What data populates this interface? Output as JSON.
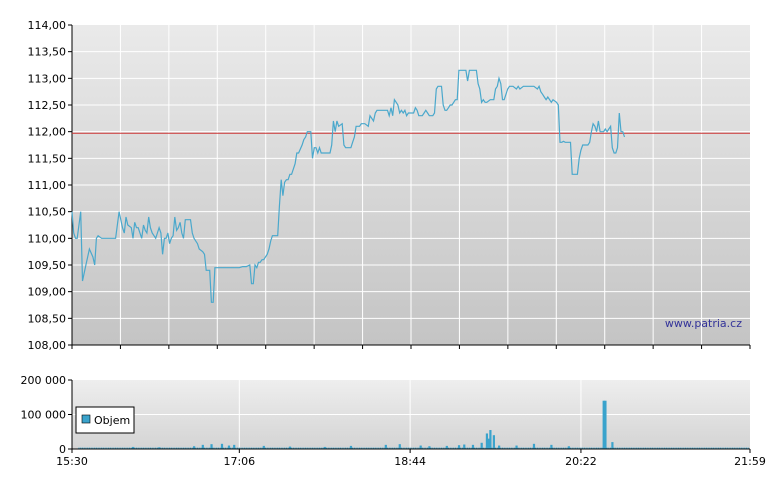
{
  "watermark": "www.patria.cz",
  "colors": {
    "price_line": "#4aa8cc",
    "reference_line": "#cc3333",
    "volume_bar": "#3aa3cc",
    "grid": "#ffffff",
    "axis": "#000000"
  },
  "chart_data": [
    {
      "type": "line",
      "name": "price",
      "ylim": [
        108.0,
        114.0
      ],
      "ytick_labels": [
        "108,00",
        "108,50",
        "109,00",
        "109,50",
        "110,00",
        "110,50",
        "111,00",
        "111,50",
        "112,00",
        "112,50",
        "113,00",
        "113,50",
        "114,00"
      ],
      "yticks": [
        108.0,
        108.5,
        109.0,
        109.5,
        110.0,
        110.5,
        111.0,
        111.5,
        112.0,
        112.5,
        113.0,
        113.5,
        114.0
      ],
      "xlim": [
        "15:30",
        "21:59"
      ],
      "reference_value": 111.97,
      "grid": true,
      "points": [
        [
          "15:30",
          110.5
        ],
        [
          "15:31",
          110.1
        ],
        [
          "15:32",
          110.0
        ],
        [
          "15:33",
          110.0
        ],
        [
          "15:35",
          110.5
        ],
        [
          "15:36",
          109.2
        ],
        [
          "15:38",
          109.5
        ],
        [
          "15:40",
          109.8
        ],
        [
          "15:42",
          109.65
        ],
        [
          "15:43",
          109.5
        ],
        [
          "15:44",
          110.0
        ],
        [
          "15:45",
          110.05
        ],
        [
          "15:47",
          110.0
        ],
        [
          "15:49",
          110.0
        ],
        [
          "15:51",
          110.0
        ],
        [
          "15:53",
          110.0
        ],
        [
          "15:55",
          110.0
        ],
        [
          "15:57",
          110.5
        ],
        [
          "15:59",
          110.2
        ],
        [
          "16:00",
          110.1
        ],
        [
          "16:01",
          110.4
        ],
        [
          "16:02",
          110.25
        ],
        [
          "16:04",
          110.2
        ],
        [
          "16:05",
          110.0
        ],
        [
          "16:06",
          110.3
        ],
        [
          "16:07",
          110.2
        ],
        [
          "16:08",
          110.2
        ],
        [
          "16:10",
          110.0
        ],
        [
          "16:11",
          110.25
        ],
        [
          "16:12",
          110.15
        ],
        [
          "16:13",
          110.1
        ],
        [
          "16:14",
          110.4
        ],
        [
          "16:15",
          110.2
        ],
        [
          "16:16",
          110.1
        ],
        [
          "16:18",
          110.0
        ],
        [
          "16:19",
          110.1
        ],
        [
          "16:20",
          110.2
        ],
        [
          "16:21",
          110.1
        ],
        [
          "16:22",
          109.7
        ],
        [
          "16:23",
          110.0
        ],
        [
          "16:24",
          110.0
        ],
        [
          "16:25",
          110.1
        ],
        [
          "16:26",
          109.9
        ],
        [
          "16:27",
          110.0
        ],
        [
          "16:28",
          110.05
        ],
        [
          "16:29",
          110.4
        ],
        [
          "16:30",
          110.15
        ],
        [
          "16:31",
          110.2
        ],
        [
          "16:32",
          110.3
        ],
        [
          "16:33",
          110.1
        ],
        [
          "16:34",
          110.0
        ],
        [
          "16:35",
          110.35
        ],
        [
          "16:37",
          110.35
        ],
        [
          "16:38",
          110.35
        ],
        [
          "16:39",
          110.1
        ],
        [
          "16:40",
          110.0
        ],
        [
          "16:42",
          109.9
        ],
        [
          "16:43",
          109.8
        ],
        [
          "16:45",
          109.75
        ],
        [
          "16:46",
          109.7
        ],
        [
          "16:47",
          109.4
        ],
        [
          "16:48",
          109.4
        ],
        [
          "16:49",
          109.4
        ],
        [
          "16:50",
          108.8
        ],
        [
          "16:51",
          108.8
        ],
        [
          "16:52",
          109.45
        ],
        [
          "16:54",
          109.45
        ],
        [
          "16:56",
          109.45
        ],
        [
          "16:58",
          109.45
        ],
        [
          "17:00",
          109.45
        ],
        [
          "17:02",
          109.45
        ],
        [
          "17:04",
          109.45
        ],
        [
          "17:06",
          109.45
        ],
        [
          "17:08",
          109.47
        ],
        [
          "17:10",
          109.47
        ],
        [
          "17:12",
          109.5
        ],
        [
          "17:13",
          109.15
        ],
        [
          "17:14",
          109.15
        ],
        [
          "17:15",
          109.5
        ],
        [
          "17:16",
          109.45
        ],
        [
          "17:17",
          109.55
        ],
        [
          "17:18",
          109.55
        ],
        [
          "17:19",
          109.6
        ],
        [
          "17:20",
          109.6
        ],
        [
          "17:22",
          109.7
        ],
        [
          "17:23",
          109.8
        ],
        [
          "17:24",
          109.95
        ],
        [
          "17:25",
          110.05
        ],
        [
          "17:27",
          110.05
        ],
        [
          "17:28",
          110.05
        ],
        [
          "17:29",
          110.6
        ],
        [
          "17:30",
          111.1
        ],
        [
          "17:31",
          110.8
        ],
        [
          "17:32",
          111.05
        ],
        [
          "17:33",
          111.1
        ],
        [
          "17:34",
          111.1
        ],
        [
          "17:35",
          111.2
        ],
        [
          "17:36",
          111.2
        ],
        [
          "17:38",
          111.4
        ],
        [
          "17:39",
          111.6
        ],
        [
          "17:40",
          111.6
        ],
        [
          "17:42",
          111.75
        ],
        [
          "17:43",
          111.85
        ],
        [
          "17:44",
          111.9
        ],
        [
          "17:45",
          112.0
        ],
        [
          "17:47",
          112.0
        ],
        [
          "17:48",
          111.5
        ],
        [
          "17:49",
          111.7
        ],
        [
          "17:50",
          111.7
        ],
        [
          "17:51",
          111.6
        ],
        [
          "17:52",
          111.7
        ],
        [
          "17:53",
          111.6
        ],
        [
          "17:55",
          111.6
        ],
        [
          "17:57",
          111.6
        ],
        [
          "17:58",
          111.6
        ],
        [
          "17:59",
          111.75
        ],
        [
          "18:00",
          112.2
        ],
        [
          "18:01",
          112.0
        ],
        [
          "18:02",
          112.2
        ],
        [
          "18:03",
          112.1
        ],
        [
          "18:05",
          112.15
        ],
        [
          "18:06",
          111.75
        ],
        [
          "18:07",
          111.7
        ],
        [
          "18:09",
          111.7
        ],
        [
          "18:10",
          111.7
        ],
        [
          "18:11",
          111.8
        ],
        [
          "18:12",
          111.9
        ],
        [
          "18:13",
          112.1
        ],
        [
          "18:15",
          112.1
        ],
        [
          "18:16",
          112.15
        ],
        [
          "18:18",
          112.15
        ],
        [
          "18:20",
          112.1
        ],
        [
          "18:21",
          112.3
        ],
        [
          "18:23",
          112.2
        ],
        [
          "18:24",
          112.35
        ],
        [
          "18:25",
          112.4
        ],
        [
          "18:27",
          112.4
        ],
        [
          "18:29",
          112.4
        ],
        [
          "18:31",
          112.4
        ],
        [
          "18:32",
          112.3
        ],
        [
          "18:33",
          112.45
        ],
        [
          "18:34",
          112.3
        ],
        [
          "18:35",
          112.6
        ],
        [
          "18:36",
          112.55
        ],
        [
          "18:37",
          112.5
        ],
        [
          "18:38",
          112.35
        ],
        [
          "18:39",
          112.4
        ],
        [
          "18:40",
          112.35
        ],
        [
          "18:41",
          112.4
        ],
        [
          "18:42",
          112.3
        ],
        [
          "18:43",
          112.35
        ],
        [
          "18:44",
          112.35
        ],
        [
          "18:46",
          112.35
        ],
        [
          "18:47",
          112.45
        ],
        [
          "18:48",
          112.4
        ],
        [
          "18:49",
          112.3
        ],
        [
          "18:50",
          112.3
        ],
        [
          "18:51",
          112.3
        ],
        [
          "18:52",
          112.35
        ],
        [
          "18:53",
          112.4
        ],
        [
          "18:54",
          112.35
        ],
        [
          "18:55",
          112.3
        ],
        [
          "18:57",
          112.3
        ],
        [
          "18:58",
          112.35
        ],
        [
          "18:59",
          112.8
        ],
        [
          "19:00",
          112.85
        ],
        [
          "19:02",
          112.85
        ],
        [
          "19:03",
          112.5
        ],
        [
          "19:04",
          112.4
        ],
        [
          "19:05",
          112.4
        ],
        [
          "19:06",
          112.45
        ],
        [
          "19:07",
          112.5
        ],
        [
          "19:08",
          112.5
        ],
        [
          "19:10",
          112.6
        ],
        [
          "19:11",
          112.6
        ],
        [
          "19:12",
          113.15
        ],
        [
          "19:14",
          113.15
        ],
        [
          "19:16",
          113.15
        ],
        [
          "19:17",
          112.95
        ],
        [
          "19:18",
          113.15
        ],
        [
          "19:20",
          113.15
        ],
        [
          "19:22",
          113.15
        ],
        [
          "19:23",
          112.9
        ],
        [
          "19:24",
          112.8
        ],
        [
          "19:25",
          112.55
        ],
        [
          "19:26",
          112.6
        ],
        [
          "19:27",
          112.55
        ],
        [
          "19:28",
          112.55
        ],
        [
          "19:30",
          112.6
        ],
        [
          "19:32",
          112.6
        ],
        [
          "19:33",
          112.8
        ],
        [
          "19:34",
          112.85
        ],
        [
          "19:35",
          113.0
        ],
        [
          "19:36",
          112.9
        ],
        [
          "19:37",
          112.6
        ],
        [
          "19:38",
          112.6
        ],
        [
          "19:40",
          112.8
        ],
        [
          "19:41",
          112.85
        ],
        [
          "19:43",
          112.85
        ],
        [
          "19:45",
          112.8
        ],
        [
          "19:46",
          112.85
        ],
        [
          "19:47",
          112.8
        ],
        [
          "19:49",
          112.85
        ],
        [
          "19:51",
          112.85
        ],
        [
          "19:53",
          112.85
        ],
        [
          "19:55",
          112.85
        ],
        [
          "19:57",
          112.8
        ],
        [
          "19:58",
          112.85
        ],
        [
          "19:59",
          112.75
        ],
        [
          "20:00",
          112.7
        ],
        [
          "20:01",
          112.65
        ],
        [
          "20:02",
          112.6
        ],
        [
          "20:03",
          112.65
        ],
        [
          "20:04",
          112.6
        ],
        [
          "20:05",
          112.55
        ],
        [
          "20:06",
          112.6
        ],
        [
          "20:08",
          112.55
        ],
        [
          "20:09",
          112.5
        ],
        [
          "20:10",
          111.8
        ],
        [
          "20:11",
          111.8
        ],
        [
          "20:12",
          111.82
        ],
        [
          "20:13",
          111.8
        ],
        [
          "20:14",
          111.8
        ],
        [
          "20:15",
          111.8
        ],
        [
          "20:16",
          111.8
        ],
        [
          "20:17",
          111.2
        ],
        [
          "20:18",
          111.2
        ],
        [
          "20:20",
          111.2
        ],
        [
          "20:21",
          111.5
        ],
        [
          "20:22",
          111.65
        ],
        [
          "20:23",
          111.75
        ],
        [
          "20:24",
          111.75
        ],
        [
          "20:25",
          111.75
        ],
        [
          "20:26",
          111.75
        ],
        [
          "20:27",
          111.8
        ],
        [
          "20:28",
          112.0
        ],
        [
          "20:29",
          112.15
        ],
        [
          "20:30",
          112.1
        ],
        [
          "20:31",
          112.0
        ],
        [
          "20:32",
          112.2
        ],
        [
          "20:33",
          112.0
        ],
        [
          "20:34",
          112.0
        ],
        [
          "20:35",
          112.0
        ],
        [
          "20:36",
          112.05
        ],
        [
          "20:37",
          112.0
        ],
        [
          "20:38",
          112.05
        ],
        [
          "20:39",
          112.1
        ],
        [
          "20:40",
          111.7
        ],
        [
          "20:41",
          111.6
        ],
        [
          "20:42",
          111.6
        ],
        [
          "20:43",
          111.7
        ],
        [
          "20:44",
          112.35
        ],
        [
          "20:45",
          112.0
        ],
        [
          "20:46",
          112.0
        ],
        [
          "20:47",
          111.9
        ]
      ]
    },
    {
      "type": "bar",
      "name": "volume",
      "ylim": [
        0,
        200000
      ],
      "ytick_labels": [
        "0",
        "100 000",
        "200 000"
      ],
      "yticks": [
        0,
        100000,
        200000
      ],
      "legend": "Objem",
      "legend_placement": "bottom-left",
      "xtick_labels": [
        "15:30",
        "17:06",
        "18:44",
        "20:22",
        "21:59"
      ],
      "grid": true,
      "spikes": [
        [
          "16:05",
          6000
        ],
        [
          "16:20",
          5000
        ],
        [
          "16:40",
          8000
        ],
        [
          "16:45",
          12000
        ],
        [
          "16:50",
          14000
        ],
        [
          "16:56",
          15000
        ],
        [
          "17:00",
          10000
        ],
        [
          "17:03",
          12000
        ],
        [
          "17:20",
          9000
        ],
        [
          "17:35",
          7000
        ],
        [
          "17:55",
          6000
        ],
        [
          "18:10",
          9000
        ],
        [
          "18:30",
          12000
        ],
        [
          "18:38",
          14000
        ],
        [
          "18:50",
          10000
        ],
        [
          "18:55",
          8000
        ],
        [
          "19:05",
          9000
        ],
        [
          "19:12",
          11000
        ],
        [
          "19:15",
          13000
        ],
        [
          "19:20",
          12000
        ],
        [
          "19:25",
          18000
        ],
        [
          "19:28",
          45000
        ],
        [
          "19:29",
          30000
        ],
        [
          "19:30",
          55000
        ],
        [
          "19:32",
          40000
        ],
        [
          "19:35",
          10000
        ],
        [
          "19:45",
          10000
        ],
        [
          "19:55",
          15000
        ],
        [
          "20:05",
          12000
        ],
        [
          "20:15",
          8000
        ],
        [
          "20:35",
          140000
        ],
        [
          "20:36",
          140000
        ],
        [
          "20:40",
          20000
        ]
      ],
      "baseline_level": 4000
    }
  ]
}
